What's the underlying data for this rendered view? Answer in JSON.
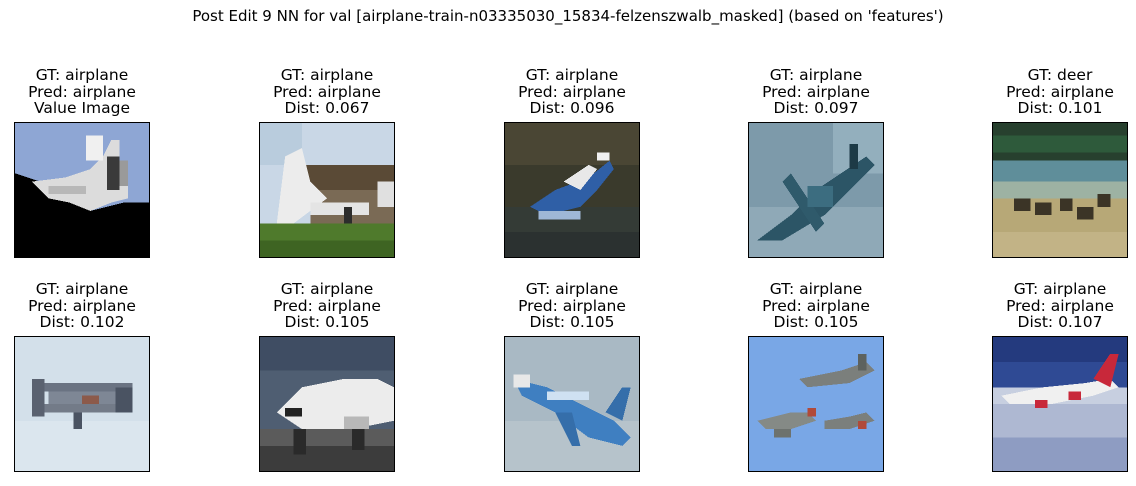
{
  "figure": {
    "title": "Post Edit 9 NN for val [airplane-train-n03335030_15834-felzenszwalb_masked] (based on 'features')"
  },
  "panels": [
    {
      "gt": "GT: airplane",
      "pred": "Pred: airplane",
      "info": "Value Image",
      "image": "query-airplane-masked",
      "colors": {
        "sky": "#8ea6d4",
        "ground": "#000000",
        "plane": "#d9d9d9"
      }
    },
    {
      "gt": "GT: airplane",
      "pred": "Pred: airplane",
      "info": "Dist: 0.067",
      "image": "airplane-on-ground-museum",
      "colors": {
        "sky": "#c9d7e6",
        "ground": "#4f7a2c",
        "plane": "#e6e6e6"
      }
    },
    {
      "gt": "GT: airplane",
      "pred": "Pred: airplane",
      "info": "Dist: 0.096",
      "image": "seaplane-over-forest",
      "colors": {
        "sky": "#3a3a2c",
        "ground": "#3c4a3a",
        "plane": "#2f5fa6"
      }
    },
    {
      "gt": "GT: airplane",
      "pred": "Pred: airplane",
      "info": "Dist: 0.097",
      "image": "fighter-plane-teal",
      "colors": {
        "sky": "#7d9aaa",
        "ground": "#8fa9b7",
        "plane": "#2c5566"
      }
    },
    {
      "gt": "GT: deer",
      "pred": "Pred: airplane",
      "info": "Dist: 0.101",
      "image": "deer-in-field",
      "colors": {
        "sky": "#27402e",
        "ground": "#b7a877",
        "plane": "#3b3426"
      }
    },
    {
      "gt": "GT: airplane",
      "pred": "Pred: airplane",
      "info": "Dist: 0.102",
      "image": "biplane-pale-sky",
      "colors": {
        "sky": "#d3e0ea",
        "ground": "#dbe6ee",
        "plane": "#6a7382"
      }
    },
    {
      "gt": "GT: airplane",
      "pred": "Pred: airplane",
      "info": "Dist: 0.105",
      "image": "airliner-nose-closeup",
      "colors": {
        "sky": "#4f5e72",
        "ground": "#5b5b5b",
        "plane": "#ececec"
      }
    },
    {
      "gt": "GT: airplane",
      "pred": "Pred: airplane",
      "info": "Dist: 0.105",
      "image": "blue-jet-climbing",
      "colors": {
        "sky": "#a9b9c4",
        "ground": "#b6c3cb",
        "plane": "#3f7fc1"
      }
    },
    {
      "gt": "GT: airplane",
      "pred": "Pred: airplane",
      "info": "Dist: 0.105",
      "image": "formation-jets-blue-sky",
      "colors": {
        "sky": "#79a7e6",
        "ground": "#7fabea",
        "plane": "#7b7f7c"
      }
    },
    {
      "gt": "GT: airplane",
      "pred": "Pred: airplane",
      "info": "Dist: 0.107",
      "image": "airliner-above-clouds",
      "colors": {
        "sky": "#2f4a94",
        "ground": "#c7cfe0",
        "plane": "#f0f0f0"
      }
    }
  ]
}
